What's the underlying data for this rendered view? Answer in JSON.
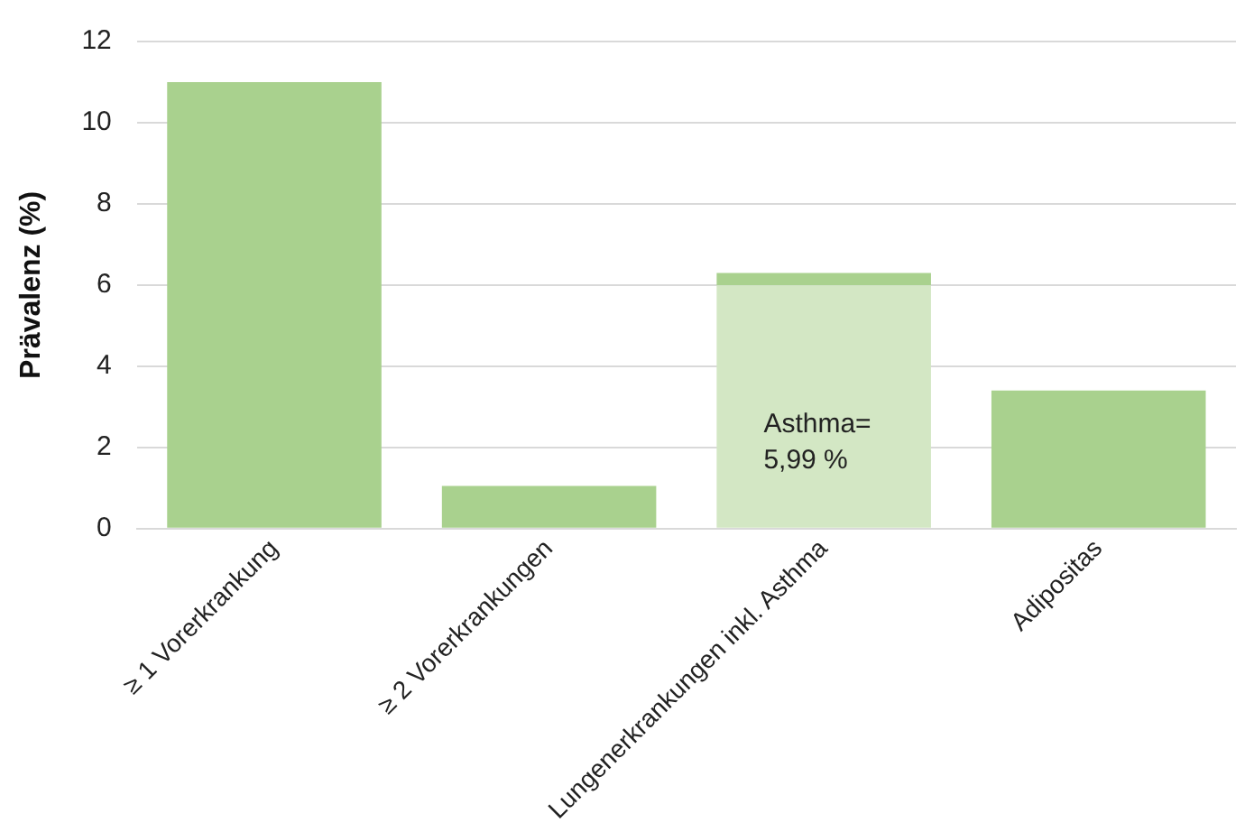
{
  "chart_data": {
    "type": "bar",
    "ylabel": "Prävalenz (%)",
    "categories": [
      "≥ 1 Vorerkrankung",
      "≥ 2 Vorerkrankungen",
      "Lungenerkrankungen inkl. Asthma",
      "Adipositas"
    ],
    "stacked": true,
    "series": [
      {
        "color": "#d3e7c4",
        "values": [
          null,
          null,
          5.99,
          null
        ]
      },
      {
        "color": "#a9d18e",
        "values": [
          11.0,
          1.05,
          0.31,
          3.4
        ]
      }
    ],
    "ylim": [
      0,
      12
    ],
    "yticks": [
      0,
      2,
      4,
      6,
      8,
      10,
      12
    ],
    "grid": "y",
    "legend": false,
    "annotations": [
      "Asthma=\n5,99 %"
    ]
  }
}
